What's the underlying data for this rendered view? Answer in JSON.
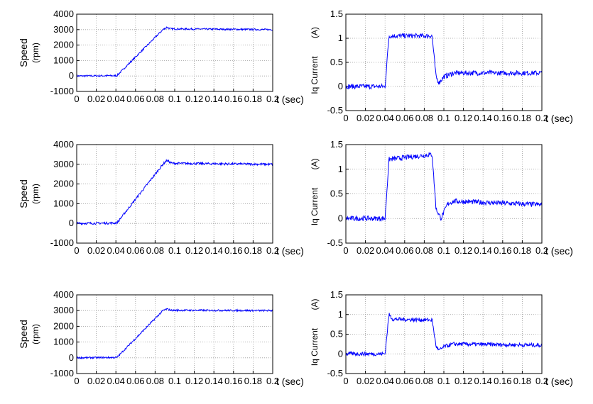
{
  "chart_data": [
    {
      "id": "speed-1",
      "type": "line",
      "xlabel": "t (sec)",
      "ylabel": "Speed",
      "yunit": "(rpm)",
      "xlim": [
        0,
        0.2
      ],
      "ylim": [
        -1000,
        4000
      ],
      "xticks": [
        "0",
        "0.02",
        "0.04",
        "0.06",
        "0.08",
        "0.1",
        "0.12",
        "0.14",
        "0.16",
        "0.18",
        "0.2"
      ],
      "yticks": [
        "-1000",
        "0",
        "1000",
        "2000",
        "3000",
        "4000"
      ],
      "grid": true,
      "color": "#0000ff",
      "points": [
        [
          0,
          0
        ],
        [
          0.041,
          20
        ],
        [
          0.088,
          3000
        ],
        [
          0.092,
          3150
        ],
        [
          0.096,
          3050
        ],
        [
          0.2,
          3000
        ]
      ],
      "noise": 55
    },
    {
      "id": "iq-1",
      "type": "line",
      "xlabel": "t (sec)",
      "ylabel": "Iq Current",
      "yunit": "(A)",
      "xlim": [
        0,
        0.2
      ],
      "ylim": [
        -0.5,
        1.5
      ],
      "xticks": [
        "0",
        "0.02",
        "0.04",
        "0.06",
        "0.08",
        "0.1",
        "0.12",
        "0.14",
        "0.16",
        "0.18",
        "0.2"
      ],
      "yticks": [
        "-0.5",
        "0",
        "0.5",
        "1",
        "1.5"
      ],
      "grid": true,
      "color": "#0000ff",
      "points": [
        [
          0,
          0
        ],
        [
          0.04,
          0
        ],
        [
          0.044,
          1.05
        ],
        [
          0.088,
          1.05
        ],
        [
          0.092,
          0.2
        ],
        [
          0.095,
          0.08
        ],
        [
          0.1,
          0.2
        ],
        [
          0.11,
          0.28
        ],
        [
          0.2,
          0.28
        ]
      ],
      "noise": 0.05
    },
    {
      "id": "speed-2",
      "type": "line",
      "xlabel": "t (sec)",
      "ylabel": "Speed",
      "yunit": "(rpm)",
      "xlim": [
        0,
        0.2
      ],
      "ylim": [
        -1000,
        4000
      ],
      "xticks": [
        "0",
        "0.02",
        "0.04",
        "0.06",
        "0.08",
        "0.1",
        "0.12",
        "0.14",
        "0.16",
        "0.18",
        "0.2"
      ],
      "yticks": [
        "-1000",
        "0",
        "1000",
        "2000",
        "3000",
        "4000"
      ],
      "grid": true,
      "color": "#0000ff",
      "points": [
        [
          0,
          0
        ],
        [
          0.041,
          20
        ],
        [
          0.088,
          3000
        ],
        [
          0.092,
          3200
        ],
        [
          0.097,
          3050
        ],
        [
          0.2,
          3000
        ]
      ],
      "noise": 55
    },
    {
      "id": "iq-2",
      "type": "line",
      "xlabel": "t (sec)",
      "ylabel": "Iq Current",
      "yunit": "(A)",
      "xlim": [
        0,
        0.2
      ],
      "ylim": [
        -0.5,
        1.5
      ],
      "xticks": [
        "0",
        "0.02",
        "0.04",
        "0.06",
        "0.08",
        "0.1",
        "0.12",
        "0.14",
        "0.16",
        "0.18",
        "0.2"
      ],
      "yticks": [
        "-0.5",
        "0",
        "0.5",
        "1",
        "1.5"
      ],
      "grid": true,
      "color": "#0000ff",
      "points": [
        [
          0,
          0
        ],
        [
          0.04,
          0
        ],
        [
          0.044,
          1.2
        ],
        [
          0.088,
          1.3
        ],
        [
          0.092,
          0.2
        ],
        [
          0.097,
          0.0
        ],
        [
          0.104,
          0.3
        ],
        [
          0.11,
          0.35
        ],
        [
          0.2,
          0.28
        ]
      ],
      "noise": 0.05
    },
    {
      "id": "speed-3",
      "type": "line",
      "xlabel": "t (sec)",
      "ylabel": "Speed",
      "yunit": "(rpm)",
      "xlim": [
        0,
        0.2
      ],
      "ylim": [
        -1000,
        4000
      ],
      "xticks": [
        "0",
        "0.02",
        "0.04",
        "0.06",
        "0.08",
        "0.1",
        "0.12",
        "0.14",
        "0.16",
        "0.18",
        "0.2"
      ],
      "yticks": [
        "-1000",
        "0",
        "1000",
        "2000",
        "3000",
        "4000"
      ],
      "grid": true,
      "color": "#0000ff",
      "points": [
        [
          0,
          0
        ],
        [
          0.041,
          20
        ],
        [
          0.088,
          3000
        ],
        [
          0.092,
          3100
        ],
        [
          0.096,
          3020
        ],
        [
          0.2,
          3000
        ]
      ],
      "noise": 55
    },
    {
      "id": "iq-3",
      "type": "line",
      "xlabel": "t (sec)",
      "ylabel": "Iq Current",
      "yunit": "(A)",
      "xlim": [
        0,
        0.2
      ],
      "ylim": [
        -0.5,
        1.5
      ],
      "xticks": [
        "0",
        "0.02",
        "0.04",
        "0.06",
        "0.08",
        "0.1",
        "0.12",
        "0.14",
        "0.16",
        "0.18",
        "0.2"
      ],
      "yticks": [
        "-0.5",
        "0",
        "0.5",
        "1",
        "1.5"
      ],
      "grid": true,
      "color": "#0000ff",
      "points": [
        [
          0,
          0
        ],
        [
          0.04,
          0
        ],
        [
          0.044,
          1.0
        ],
        [
          0.048,
          0.88
        ],
        [
          0.088,
          0.86
        ],
        [
          0.092,
          0.2
        ],
        [
          0.095,
          0.08
        ],
        [
          0.1,
          0.18
        ],
        [
          0.11,
          0.25
        ],
        [
          0.2,
          0.22
        ]
      ],
      "noise": 0.05
    }
  ]
}
